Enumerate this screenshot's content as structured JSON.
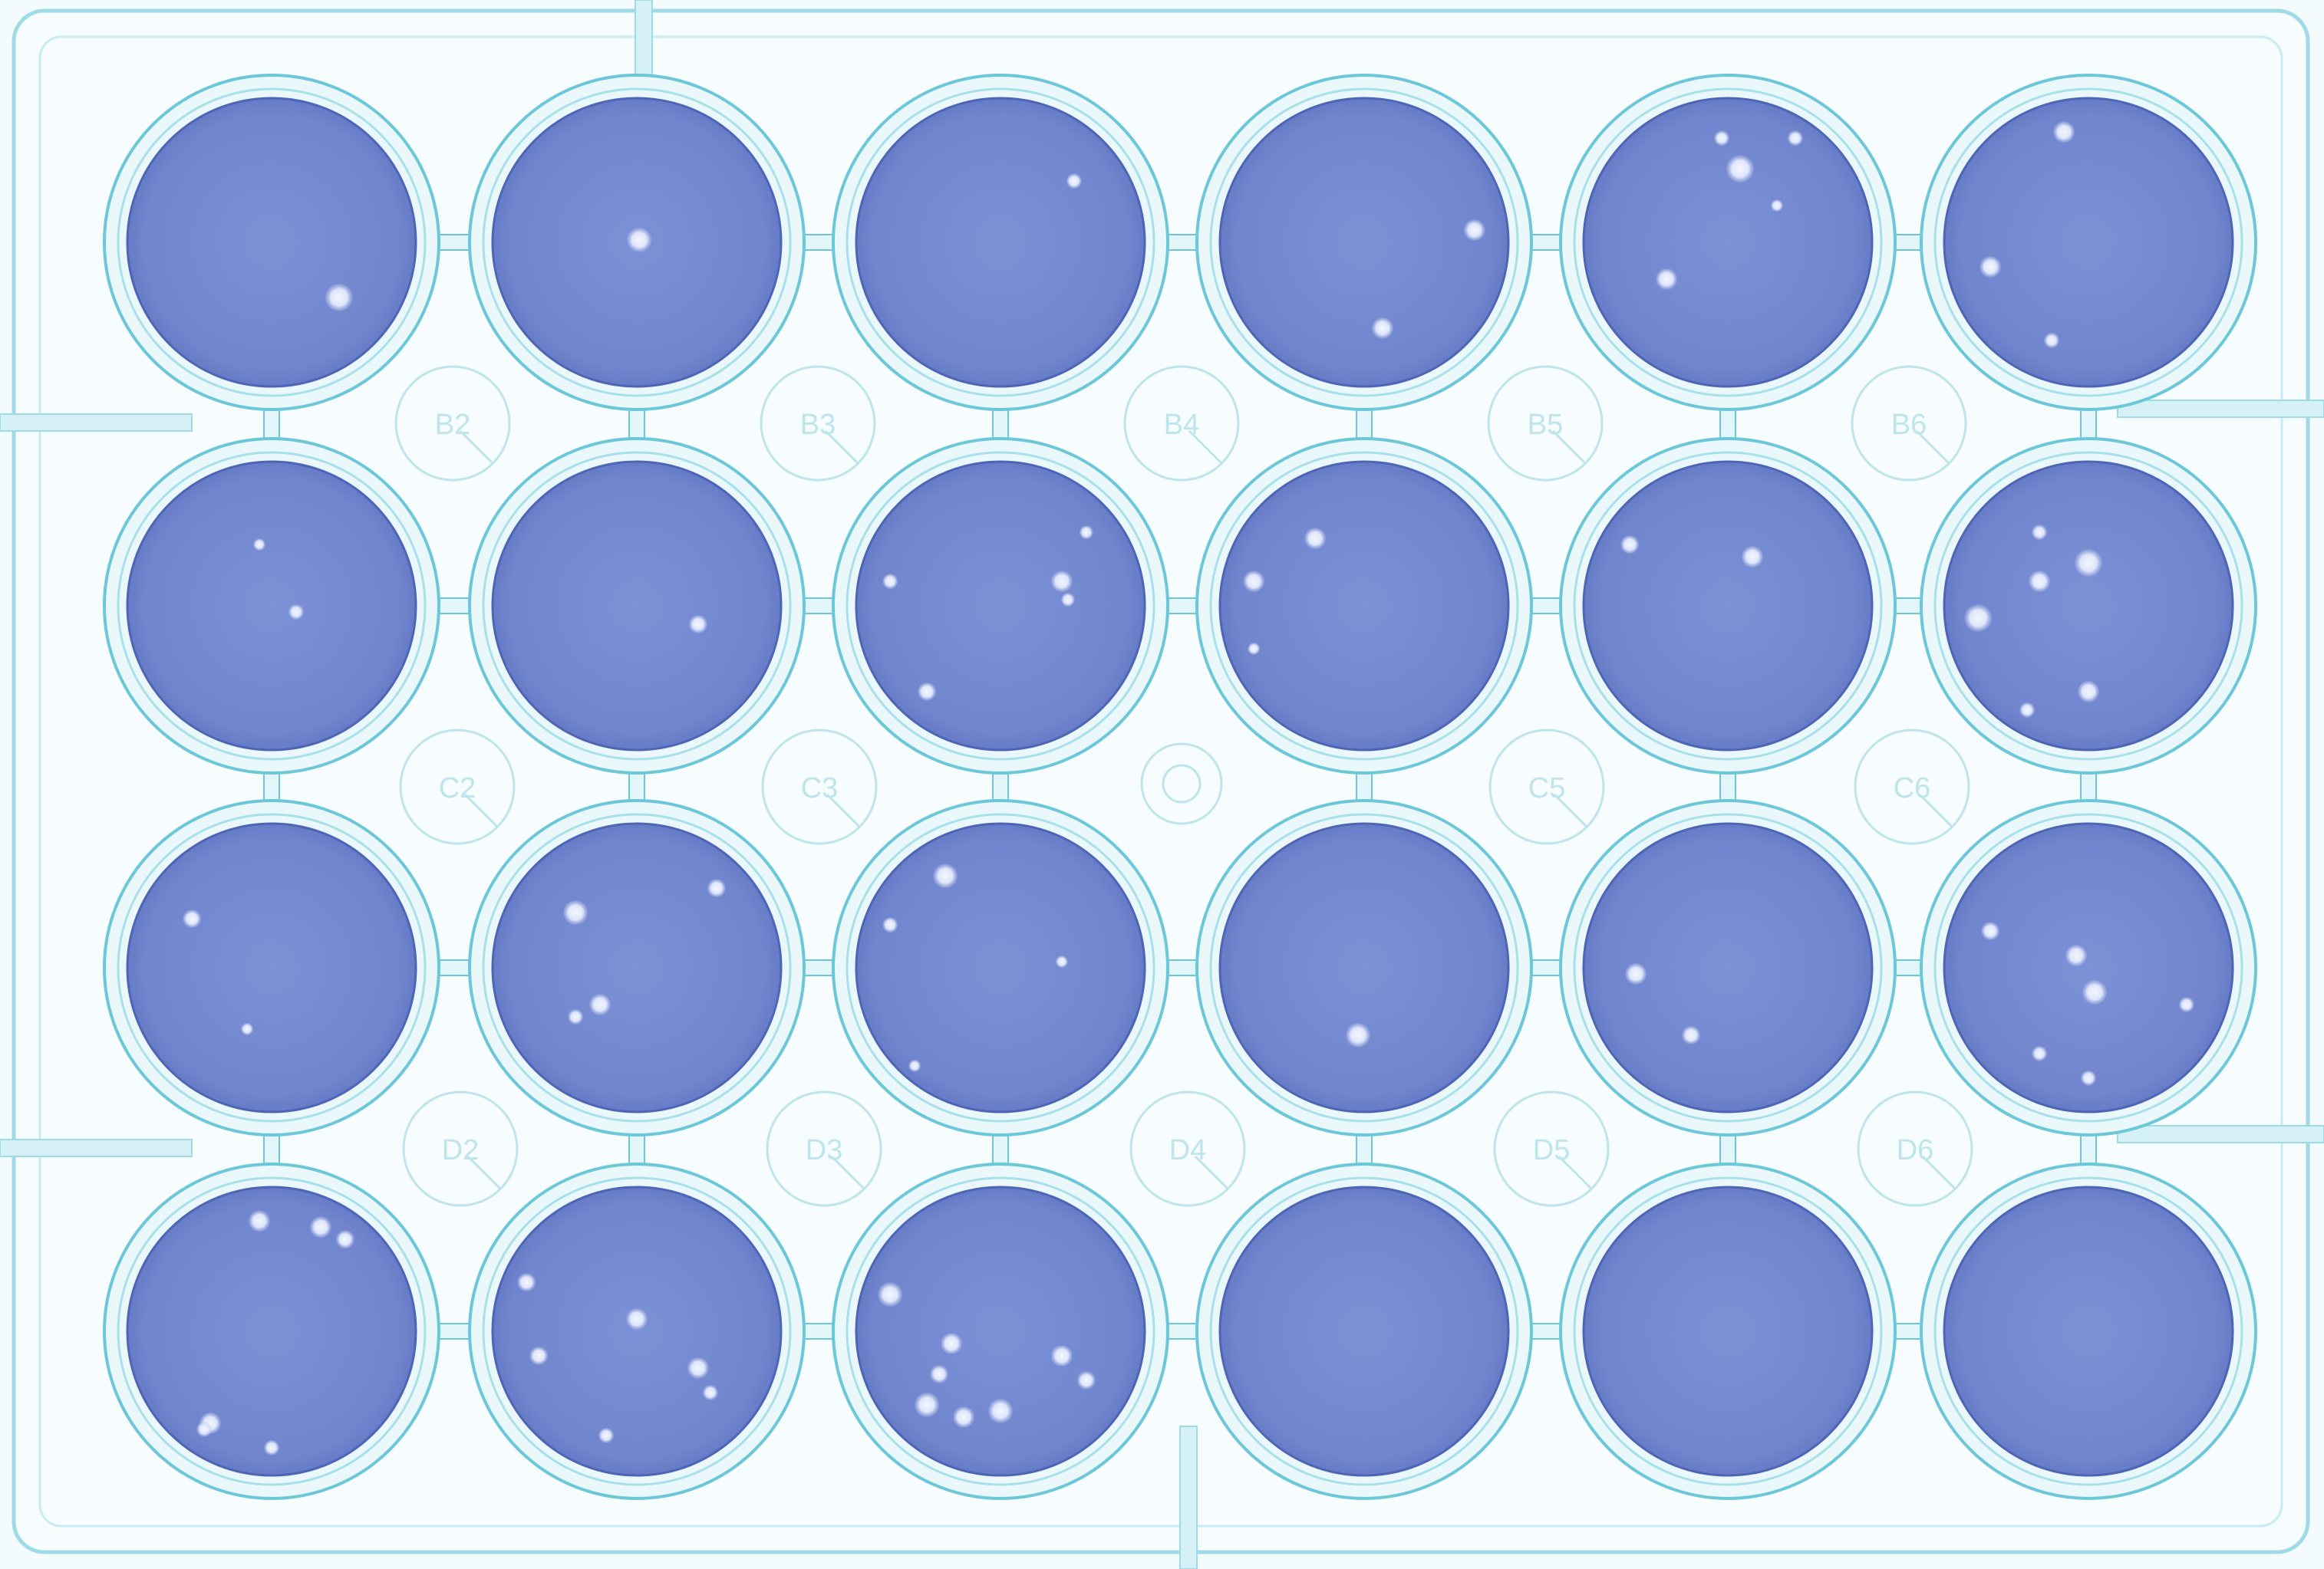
{
  "plate": {
    "well_labels": [
      "B2",
      "B3",
      "B4",
      "B5",
      "B6",
      "C2",
      "C3",
      "C5",
      "C6",
      "D2",
      "D3",
      "D4",
      "D5",
      "D6"
    ]
  },
  "colors": {
    "background": "#f4fbfd",
    "plate_outline": "#8fd6e3",
    "well_rim": "#6cc7d8",
    "well_media": "#6f86cf",
    "plaque": "#e6ecfb",
    "label_text": "#bfe5ec"
  }
}
